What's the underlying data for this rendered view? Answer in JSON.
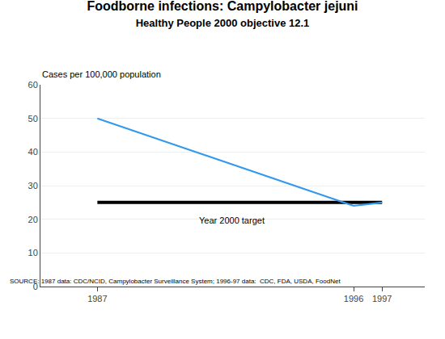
{
  "chart_data": {
    "type": "line",
    "title": "Foodborne infections: Campylobacter jejuni",
    "subtitle": "Healthy People 2000 objective 12.1",
    "ylabel": "Cases per 100,000 population",
    "source": "SOURCE: 1987 data: CDC/NCID, Campylobacter Surveillance System; 1996-97 data:  CDC, FDA, USDA, FoodNet",
    "annotations": [
      {
        "text": "Year 2000 target",
        "x": 1990.5,
        "y": 21.5
      }
    ],
    "series": [
      {
        "x": [
          1987,
          1997
        ],
        "values": [
          25,
          25
        ],
        "color": "#000000"
      },
      {
        "x": [
          1987,
          1996,
          1997
        ],
        "values": [
          50,
          24,
          25
        ],
        "color": "#3399EE"
      }
    ],
    "xlim": [
      1985.0,
      1998.5
    ],
    "xticks": [
      1987,
      1996,
      1997
    ],
    "ylim": [
      0,
      60
    ],
    "yticks": [
      0,
      10,
      20,
      30,
      40,
      50,
      60
    ],
    "grid": "y"
  }
}
